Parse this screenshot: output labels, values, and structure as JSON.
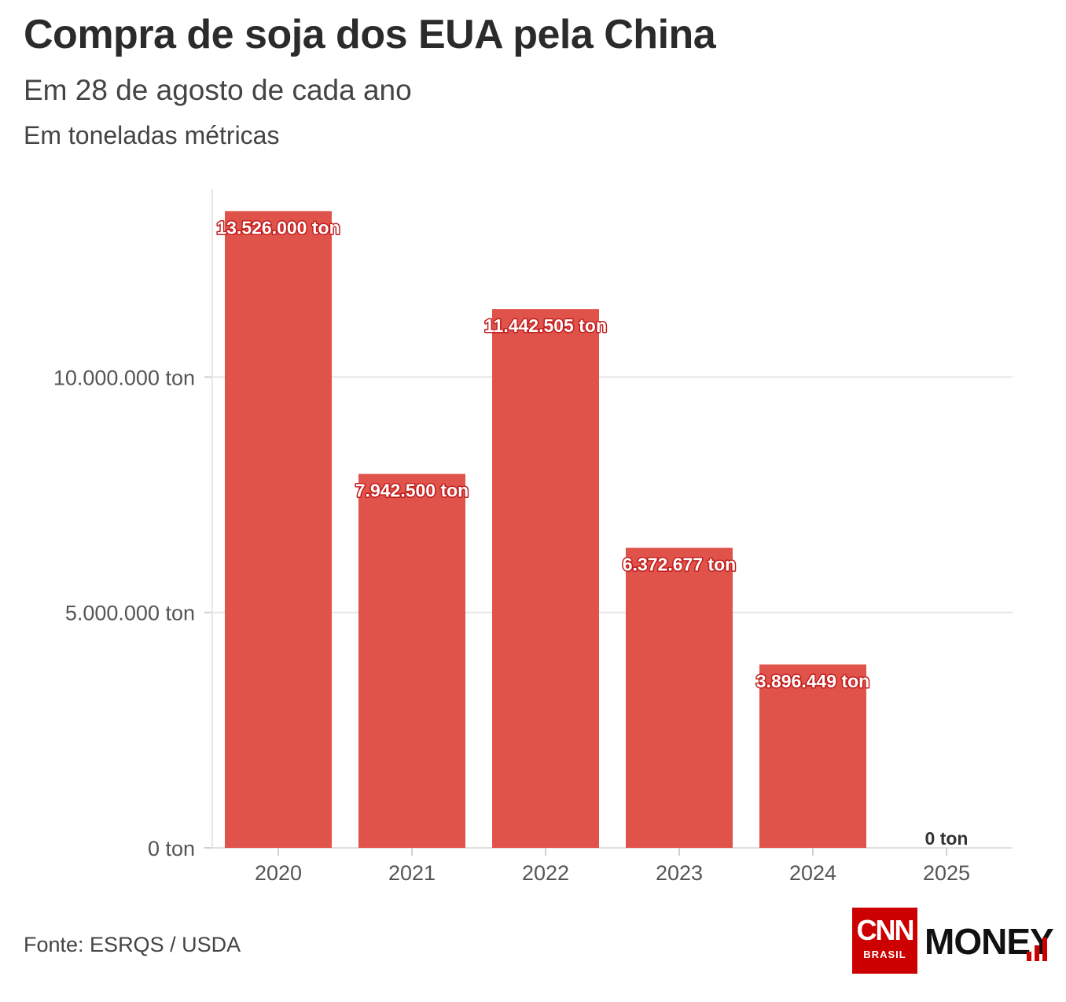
{
  "header": {
    "title": "Compra de soja dos EUA pela China",
    "subtitle": "Em 28 de agosto de cada ano",
    "unit": "Em toneladas métricas"
  },
  "footer": {
    "source": "Fonte: ESRQS / USDA"
  },
  "logo": {
    "cnn": "CNN",
    "brasil": "BRASIL",
    "money": "MONEY",
    "brand_color": "#cc0000"
  },
  "chart_data": {
    "type": "bar",
    "title": "Compra de soja dos EUA pela China",
    "xlabel": "",
    "ylabel": "Em toneladas métricas",
    "categories": [
      "2020",
      "2021",
      "2022",
      "2023",
      "2024",
      "2025"
    ],
    "values": [
      13526000,
      7942500,
      11442505,
      6372677,
      3896449,
      0
    ],
    "data_labels": [
      "13.526.000 ton",
      "7.942.500 ton",
      "11.442.505 ton",
      "6.372.677 ton",
      "3.896.449 ton",
      "0 ton"
    ],
    "yticks": [
      0,
      5000000,
      10000000
    ],
    "ytick_labels": [
      "0 ton",
      "5.000.000 ton",
      "10.000.000 ton"
    ],
    "ylim": [
      0,
      14000000
    ],
    "grid": true,
    "bar_color": "#e0534b"
  }
}
